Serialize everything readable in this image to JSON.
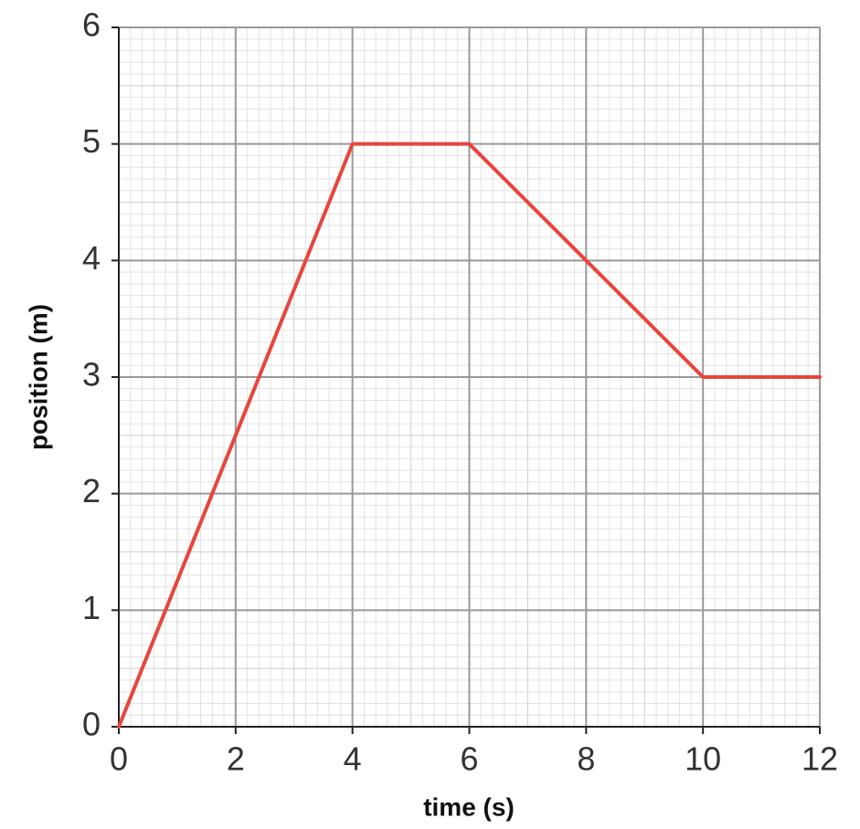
{
  "chart_data": {
    "type": "line",
    "x_label": "time (s)",
    "y_label": "position (m)",
    "x": [
      0,
      4,
      6,
      10,
      12
    ],
    "values": [
      0,
      5,
      5,
      3,
      3
    ],
    "color": "#e8453c",
    "xlim": [
      0,
      12
    ],
    "xticks": [
      0,
      2,
      4,
      6,
      8,
      10,
      12
    ],
    "ylim": [
      0,
      6
    ],
    "yticks": [
      0,
      1,
      2,
      3,
      4,
      5,
      6
    ],
    "grid": true
  }
}
